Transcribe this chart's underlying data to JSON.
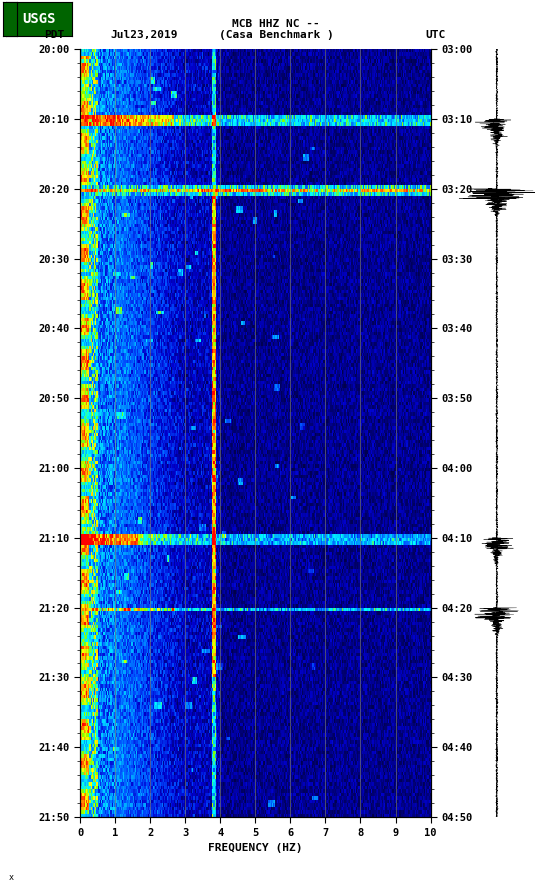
{
  "title_line1": "MCB HHZ NC --",
  "title_line2": "(Casa Benchmark )",
  "date_label": "Jul23,2019",
  "left_timezone": "PDT",
  "right_timezone": "UTC",
  "time_ticks_left": [
    "20:00",
    "20:10",
    "20:20",
    "20:30",
    "20:40",
    "20:50",
    "21:00",
    "21:10",
    "21:20",
    "21:30",
    "21:40",
    "21:50"
  ],
  "time_ticks_right": [
    "03:00",
    "03:10",
    "03:20",
    "03:30",
    "03:40",
    "03:50",
    "04:00",
    "04:10",
    "04:20",
    "04:30",
    "04:40",
    "04:50"
  ],
  "freq_label": "FREQUENCY (HZ)",
  "freq_ticks": [
    0,
    1,
    2,
    3,
    4,
    5,
    6,
    7,
    8,
    9,
    10
  ],
  "background_color": "#ffffff",
  "fig_width": 5.52,
  "fig_height": 8.93
}
